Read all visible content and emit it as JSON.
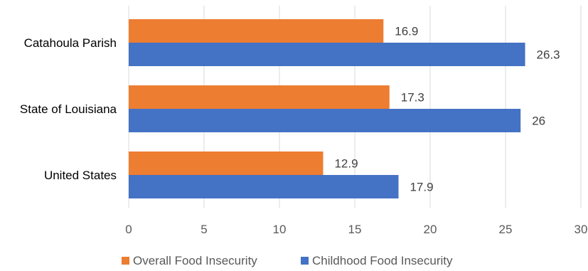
{
  "chart_data": {
    "type": "bar",
    "orientation": "horizontal",
    "title": "",
    "xlabel": "",
    "ylabel": "",
    "categories": [
      "Catahoula Parish",
      "State of Louisiana",
      "United States"
    ],
    "series": [
      {
        "name": "Overall Food Insecurity",
        "color": "#ed7d31",
        "values": [
          16.9,
          17.3,
          12.9
        ],
        "labels": [
          "16.9",
          "17.3",
          "12.9"
        ]
      },
      {
        "name": "Childhood Food Insecurity",
        "color": "#4472c4",
        "values": [
          26.3,
          26,
          17.9
        ],
        "labels": [
          "26.3",
          "26",
          "17.9"
        ]
      }
    ],
    "xlim": [
      0,
      30
    ],
    "xticks": [
      0,
      5,
      10,
      15,
      20,
      25,
      30
    ],
    "xtick_labels": [
      "0",
      "5",
      "10",
      "15",
      "20",
      "25",
      "30"
    ],
    "grid": true,
    "legend_position": "bottom"
  }
}
